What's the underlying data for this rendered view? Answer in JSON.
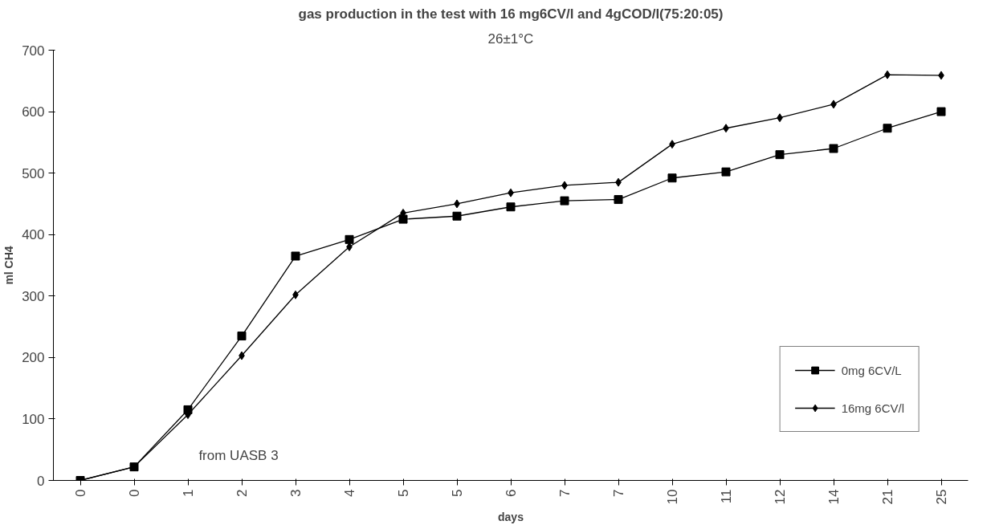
{
  "chart_data": {
    "type": "line",
    "title": "gas production in the test with 16 mg6CV/l and 4gCOD/l(75:20:05)",
    "subtitle": "26±1°C",
    "xlabel": "days",
    "ylabel": "ml CH4",
    "categories": [
      "0",
      "0",
      "1",
      "2",
      "3",
      "4",
      "5",
      "5",
      "6",
      "7",
      "7",
      "10",
      "11",
      "12",
      "14",
      "21",
      "25"
    ],
    "series": [
      {
        "name": "0mg 6CV/L",
        "color": "#000000",
        "marker": "square",
        "values": [
          0,
          22,
          115,
          235,
          365,
          392,
          425,
          430,
          445,
          455,
          457,
          492,
          502,
          530,
          540,
          573,
          600
        ]
      },
      {
        "name": "16mg 6CV/l",
        "color": "#000000",
        "marker": "diamond",
        "values": [
          0,
          22,
          107,
          203,
          302,
          380,
          435,
          450,
          468,
          480,
          485,
          547,
          573,
          590,
          612,
          660,
          659
        ]
      }
    ],
    "ylim": [
      0,
      700
    ],
    "yticks": [
      0,
      100,
      200,
      300,
      400,
      500,
      600,
      700
    ],
    "grid": false,
    "legend": "bottom right",
    "annotations": [
      "from UASB 3"
    ]
  }
}
